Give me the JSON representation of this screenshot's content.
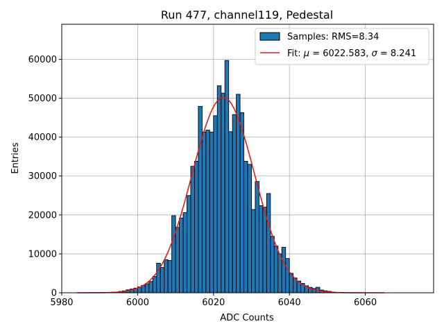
{
  "chart_data": {
    "type": "bar",
    "title": "Run 477, channel119, Pedestal",
    "xlabel": "ADC Counts",
    "ylabel": "Entries",
    "xlim": [
      5980,
      6078
    ],
    "ylim": [
      0,
      69000
    ],
    "xticks": [
      5980,
      6000,
      6020,
      6040,
      6060
    ],
    "yticks": [
      0,
      10000,
      20000,
      30000,
      40000,
      50000,
      60000
    ],
    "grid": true,
    "legend_position": "top-right",
    "bar_color": "#1f77b4",
    "fit_color": "#e41a1c",
    "legend": {
      "hist_label": "Samples: RMS=8.34",
      "fit_label_prefix": "Fit: ",
      "fit_label_mu": "μ",
      "fit_label_mid": " = 6022.583, ",
      "fit_label_sigma": "σ",
      "fit_label_end": " = 8.241"
    },
    "histogram": {
      "bin_width": 1,
      "bin_starts": [
        5993,
        5994,
        5995,
        5996,
        5997,
        5998,
        5999,
        6000,
        6001,
        6002,
        6003,
        6004,
        6005,
        6006,
        6007,
        6008,
        6009,
        6010,
        6011,
        6012,
        6013,
        6014,
        6015,
        6016,
        6017,
        6018,
        6019,
        6020,
        6021,
        6022,
        6023,
        6024,
        6025,
        6026,
        6027,
        6028,
        6029,
        6030,
        6031,
        6032,
        6033,
        6034,
        6035,
        6036,
        6037,
        6038,
        6039,
        6040,
        6041,
        6042,
        6043,
        6044,
        6045,
        6046,
        6047,
        6048,
        6049,
        6050,
        6051
      ],
      "counts": [
        150,
        200,
        350,
        500,
        750,
        950,
        1200,
        1500,
        1900,
        2300,
        2900,
        4200,
        7600,
        6500,
        8500,
        8300,
        19800,
        16800,
        19200,
        20600,
        25000,
        32500,
        33800,
        47900,
        41300,
        41800,
        41300,
        45500,
        53200,
        51300,
        59700,
        41400,
        45800,
        51000,
        46300,
        33800,
        33000,
        21400,
        28600,
        22400,
        22000,
        25500,
        14500,
        12000,
        10000,
        11700,
        8800,
        5000,
        3800,
        3000,
        2400,
        1800,
        1400,
        1100,
        1400,
        700,
        500,
        350,
        200
      ]
    },
    "fit": {
      "mu": 6022.583,
      "sigma": 8.241,
      "amplitude": 50200,
      "x_range": [
        5984,
        6065
      ]
    }
  }
}
